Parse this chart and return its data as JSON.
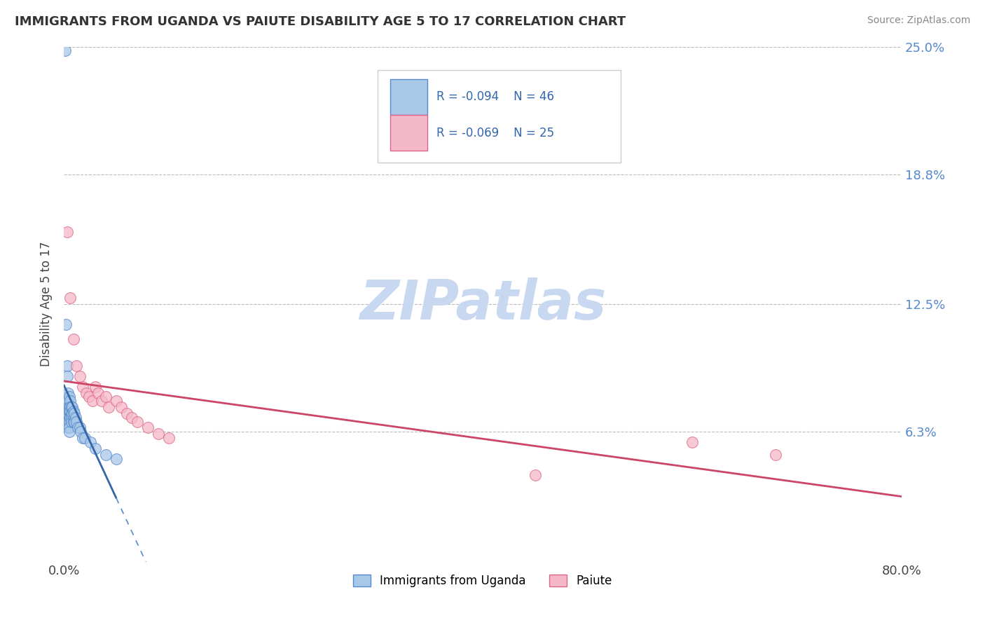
{
  "title": "IMMIGRANTS FROM UGANDA VS PAIUTE DISABILITY AGE 5 TO 17 CORRELATION CHART",
  "source": "Source: ZipAtlas.com",
  "ylabel": "Disability Age 5 to 17",
  "legend_label1": "Immigrants from Uganda",
  "legend_label2": "Paiute",
  "r1": -0.094,
  "n1": 46,
  "r2": -0.069,
  "n2": 25,
  "xlim": [
    0.0,
    0.8
  ],
  "ylim": [
    0.0,
    0.25
  ],
  "xtick_labels": [
    "0.0%",
    "80.0%"
  ],
  "ytick_labels": [
    "25.0%",
    "18.8%",
    "12.5%",
    "6.3%"
  ],
  "ytick_values": [
    0.25,
    0.188,
    0.125,
    0.063
  ],
  "color_uganda": "#a8c8e8",
  "color_paiute": "#f5b8c8",
  "edge_uganda": "#5588cc",
  "edge_paiute": "#dd6688",
  "line_color_uganda": "#3366aa",
  "line_color_paiute": "#cc4466",
  "bg_color": "#ffffff",
  "watermark": "ZIPatlas",
  "uganda_x": [
    0.001,
    0.002,
    0.003,
    0.003,
    0.003,
    0.003,
    0.004,
    0.004,
    0.004,
    0.004,
    0.004,
    0.004,
    0.004,
    0.005,
    0.005,
    0.005,
    0.005,
    0.005,
    0.005,
    0.005,
    0.006,
    0.006,
    0.006,
    0.006,
    0.007,
    0.007,
    0.007,
    0.007,
    0.008,
    0.008,
    0.009,
    0.009,
    0.009,
    0.01,
    0.01,
    0.011,
    0.012,
    0.013,
    0.015,
    0.016,
    0.018,
    0.02,
    0.025,
    0.03,
    0.04,
    0.05
  ],
  "uganda_y": [
    0.248,
    0.115,
    0.095,
    0.09,
    0.08,
    0.078,
    0.082,
    0.078,
    0.075,
    0.073,
    0.07,
    0.068,
    0.065,
    0.08,
    0.075,
    0.073,
    0.07,
    0.068,
    0.065,
    0.063,
    0.078,
    0.075,
    0.073,
    0.07,
    0.075,
    0.072,
    0.07,
    0.068,
    0.075,
    0.072,
    0.073,
    0.07,
    0.068,
    0.072,
    0.068,
    0.07,
    0.068,
    0.065,
    0.065,
    0.063,
    0.06,
    0.06,
    0.058,
    0.055,
    0.052,
    0.05
  ],
  "paiute_x": [
    0.003,
    0.006,
    0.009,
    0.012,
    0.015,
    0.018,
    0.021,
    0.024,
    0.027,
    0.03,
    0.033,
    0.036,
    0.04,
    0.043,
    0.05,
    0.055,
    0.06,
    0.065,
    0.07,
    0.08,
    0.09,
    0.1,
    0.45,
    0.6,
    0.68
  ],
  "paiute_y": [
    0.16,
    0.128,
    0.108,
    0.095,
    0.09,
    0.085,
    0.082,
    0.08,
    0.078,
    0.085,
    0.082,
    0.078,
    0.08,
    0.075,
    0.078,
    0.075,
    0.072,
    0.07,
    0.068,
    0.065,
    0.062,
    0.06,
    0.042,
    0.058,
    0.052
  ],
  "uganda_line_x0": 0.0,
  "uganda_line_x1": 0.05,
  "paiute_line_x0": 0.0,
  "paiute_line_x1": 0.8
}
